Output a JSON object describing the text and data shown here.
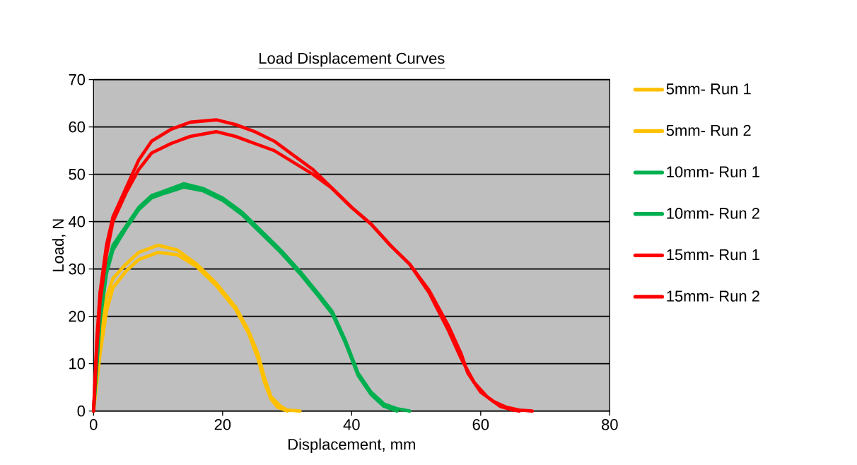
{
  "chart_data": {
    "type": "line",
    "title": "Load Displacement Curves",
    "xlabel": "Displacement, mm",
    "ylabel": "Load, N",
    "xlim": [
      0,
      80
    ],
    "xticks": [
      0,
      20,
      40,
      60,
      80
    ],
    "ylim": [
      0,
      70
    ],
    "yticks": [
      0,
      10,
      20,
      30,
      40,
      50,
      60,
      70
    ],
    "grid": "y",
    "legend": "right",
    "marker": "none",
    "line_style": "solid",
    "series": [
      {
        "name": "5mm- Run 1",
        "color": "#ffc000",
        "x": [
          0,
          1,
          2,
          3,
          5,
          7,
          10,
          13,
          16,
          19,
          22,
          24,
          25.5,
          26.5,
          27.5,
          29,
          30,
          32
        ],
        "values": [
          0,
          15,
          24,
          28,
          31,
          33.5,
          35,
          34,
          31,
          27,
          22,
          17,
          12,
          7,
          3,
          1,
          0.2,
          0
        ]
      },
      {
        "name": "5mm- Run 2",
        "color": "#ffc000",
        "x": [
          0,
          1,
          2,
          3,
          5,
          7,
          10,
          13,
          16,
          19,
          22,
          24,
          25.5,
          26.5,
          27.5,
          28.5,
          30
        ],
        "values": [
          0,
          12,
          21,
          26,
          29.5,
          32,
          33.5,
          33,
          30.5,
          26.5,
          21.5,
          16.5,
          11,
          6,
          2.5,
          0.8,
          0
        ]
      },
      {
        "name": "10mm- Run 1",
        "color": "#00b050",
        "x": [
          0,
          1,
          2,
          3,
          5,
          7,
          9,
          11,
          14,
          17,
          20,
          23,
          26,
          29,
          32,
          35,
          37,
          39,
          41,
          43,
          45,
          47,
          49
        ],
        "values": [
          0,
          20,
          30,
          35,
          39,
          43,
          45.5,
          46.5,
          48,
          47,
          45,
          42,
          38,
          34,
          29.5,
          24.5,
          21,
          15,
          8,
          4,
          1.5,
          0.5,
          0
        ]
      },
      {
        "name": "10mm- Run 2",
        "color": "#00b050",
        "x": [
          0,
          1,
          2,
          3,
          5,
          7,
          9,
          11,
          14,
          17,
          20,
          23,
          26,
          29,
          32,
          35,
          37,
          39,
          41,
          43,
          45,
          47
        ],
        "values": [
          0,
          19,
          29,
          34,
          38.5,
          42.5,
          45,
          46,
          47.3,
          46.5,
          44.5,
          41.5,
          37.5,
          33.5,
          29,
          24,
          20.5,
          14.5,
          7.5,
          3.5,
          1,
          0
        ]
      },
      {
        "name": "15mm- Run 1",
        "color": "#ff0000",
        "x": [
          0,
          0.5,
          1,
          2,
          3,
          5,
          7,
          9,
          12,
          15,
          19,
          22,
          25,
          28,
          31,
          34,
          37,
          40,
          43,
          46,
          49,
          52,
          55,
          57,
          58,
          60,
          62,
          64,
          66,
          68
        ],
        "values": [
          0,
          15,
          25,
          35,
          41,
          47,
          53,
          57,
          59.5,
          61,
          61.5,
          60.5,
          59,
          57,
          54,
          51,
          47,
          43,
          39.5,
          35,
          31,
          25.5,
          18,
          12,
          8,
          4,
          2,
          0.8,
          0.2,
          0
        ]
      },
      {
        "name": "15mm- Run 2",
        "color": "#ff0000",
        "x": [
          0,
          0.5,
          1,
          2,
          3,
          5,
          7,
          9,
          12,
          15,
          19,
          22,
          25,
          28,
          31,
          34,
          37,
          40,
          43,
          46,
          49,
          52,
          55,
          57,
          59,
          61,
          63,
          65,
          66
        ],
        "values": [
          0,
          13,
          23,
          33,
          40,
          46,
          51,
          54.5,
          56.5,
          58,
          59,
          58,
          56.5,
          55,
          52.5,
          50,
          47,
          43,
          39.5,
          35,
          31,
          25,
          17,
          11,
          6,
          3,
          1,
          0.2,
          0
        ]
      }
    ]
  }
}
